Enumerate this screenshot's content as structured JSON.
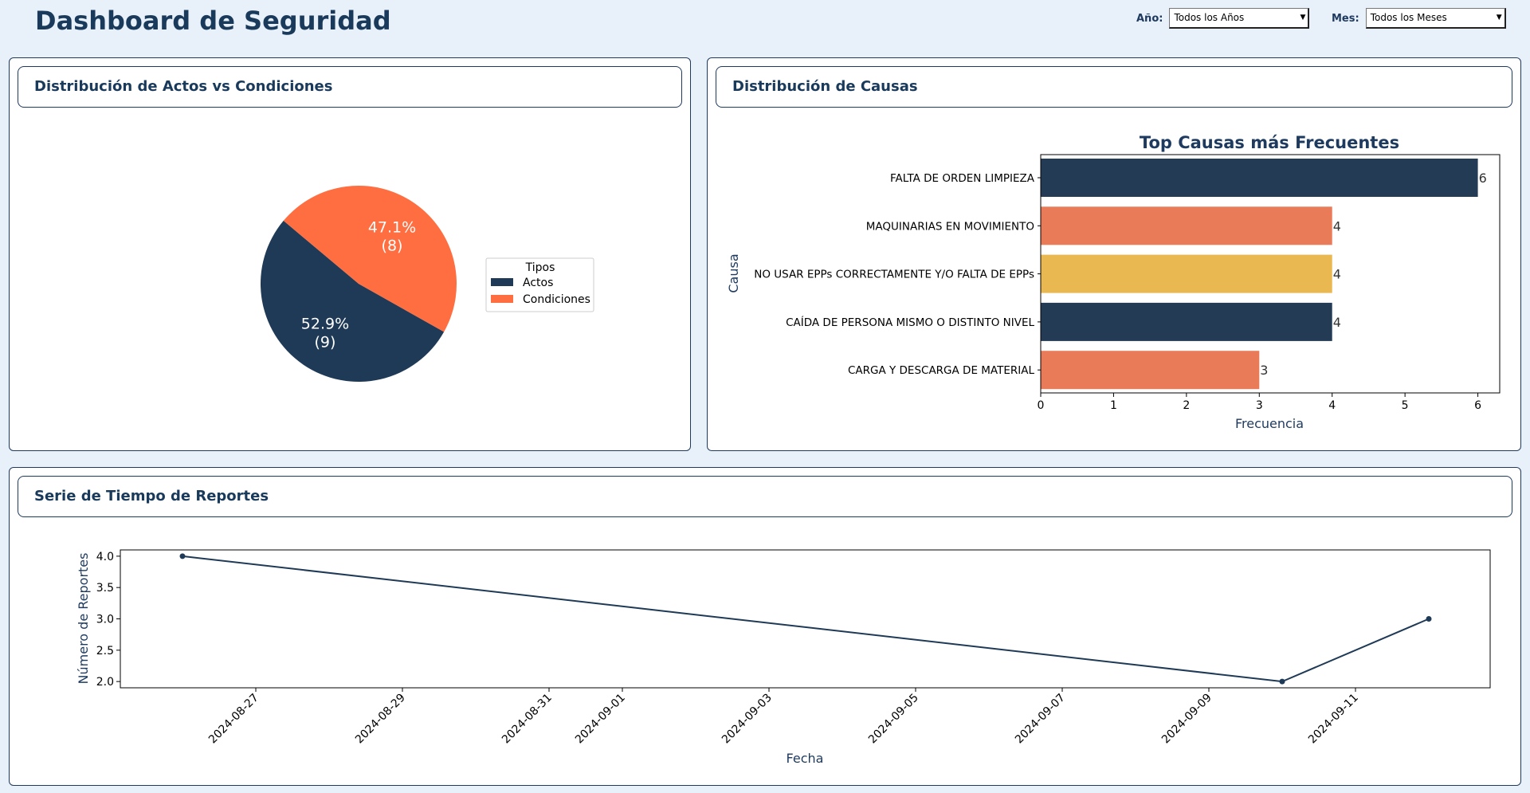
{
  "header": {
    "title": "Dashboard de Seguridad",
    "year_label": "Año:",
    "year_value": "Todos los Años",
    "month_label": "Mes:",
    "month_value": "Todos los Meses"
  },
  "panels": {
    "pie_title": "Distribución de Actos vs Condiciones",
    "bar_title": "Distribución de Causas",
    "line_title": "Serie de Tiempo de Reportes"
  },
  "colors": {
    "navy": "#1f3a56",
    "orange": "#ff6e40",
    "salmon": "#e97b58",
    "gold": "#e9b851"
  },
  "chart_data": [
    {
      "type": "pie",
      "legend_title": "Tipos",
      "labels": [
        "Actos",
        "Condiciones"
      ],
      "values": [
        9,
        8
      ],
      "percent_labels": [
        "52.9%",
        "47.1%"
      ],
      "count_labels": [
        "(9)",
        "(8)"
      ],
      "colors": [
        "#1f3a56",
        "#ff6e40"
      ],
      "legend_position": "right"
    },
    {
      "type": "bar",
      "orientation": "horizontal",
      "title": "Top Causas más Frecuentes",
      "xlabel": "Frecuencia",
      "ylabel": "Causa",
      "categories": [
        "FALTA DE ORDEN LIMPIEZA",
        "MAQUINARIAS EN MOVIMIENTO",
        "NO USAR EPPs CORRECTAMENTE Y/O FALTA DE EPPs",
        "CAÍDA DE PERSONA MISMO O DISTINTO NIVEL",
        "CARGA Y DESCARGA DE MATERIAL"
      ],
      "values": [
        6,
        4,
        4,
        4,
        3
      ],
      "colors": [
        "#243b55",
        "#e97b58",
        "#e9b851",
        "#243b55",
        "#e97b58"
      ],
      "xticks": [
        "0",
        "1",
        "2",
        "3",
        "4",
        "5",
        "6"
      ],
      "xlim": [
        0,
        6.3
      ]
    },
    {
      "type": "line",
      "xlabel": "Fecha",
      "ylabel": "Número de Reportes",
      "x": [
        "2024-08-26",
        "2024-09-10",
        "2024-09-12"
      ],
      "values": [
        4,
        2,
        3
      ],
      "xticks": [
        "2024-08-27",
        "2024-08-29",
        "2024-08-31",
        "2024-09-01",
        "2024-09-03",
        "2024-09-05",
        "2024-09-07",
        "2024-09-09",
        "2024-09-11"
      ],
      "yticks": [
        "2.0",
        "2.5",
        "3.0",
        "3.5",
        "4.0"
      ],
      "ylim": [
        1.9,
        4.1
      ],
      "color": "#1f3a56"
    }
  ]
}
